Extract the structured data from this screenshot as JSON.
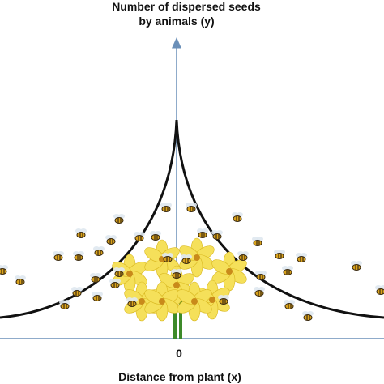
{
  "y_axis_label": {
    "line1": "Number of dispersed seeds",
    "line2": "by animals (y)"
  },
  "origin_label": "0",
  "x_axis_label": "Distance from plant (x)"
}
